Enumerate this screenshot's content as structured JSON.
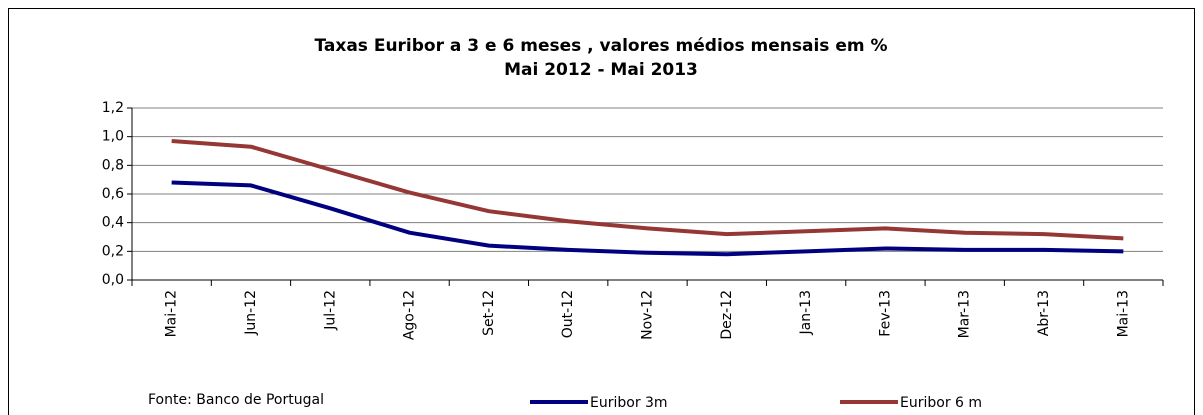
{
  "chart_data": {
    "type": "line",
    "title": "Taxas Euribor a 3 e 6 meses , valores médios mensais em %",
    "subtitle": "Mai 2012 - Mai 2013",
    "source": "Fonte: Banco de Portugal",
    "categories": [
      "Mai-12",
      "Jun-12",
      "Jul-12",
      "Ago-12",
      "Set-12",
      "Out-12",
      "Nov-12",
      "Dez-12",
      "Jan-13",
      "Fev-13",
      "Mar-13",
      "Abr-13",
      "Mai-13"
    ],
    "series": [
      {
        "name": "Euribor 3m",
        "color": "#000080",
        "values": [
          0.68,
          0.66,
          0.5,
          0.33,
          0.24,
          0.21,
          0.19,
          0.18,
          0.2,
          0.22,
          0.21,
          0.21,
          0.2
        ]
      },
      {
        "name": "Euribor 6 m",
        "color": "#953735",
        "values": [
          0.97,
          0.93,
          0.77,
          0.61,
          0.48,
          0.41,
          0.36,
          0.32,
          0.34,
          0.36,
          0.33,
          0.32,
          0.29
        ]
      }
    ],
    "ylim": [
      0,
      1.2
    ],
    "yticks": [
      {
        "value": 0,
        "label": "0,0"
      },
      {
        "value": 0.2,
        "label": "0,2"
      },
      {
        "value": 0.4,
        "label": "0,4"
      },
      {
        "value": 0.6,
        "label": "0,6"
      },
      {
        "value": 0.8,
        "label": "0,8"
      },
      {
        "value": 1.0,
        "label": "1,0"
      },
      {
        "value": 1.2,
        "label": "1,2"
      }
    ],
    "grid": true,
    "legend": "bottom"
  }
}
